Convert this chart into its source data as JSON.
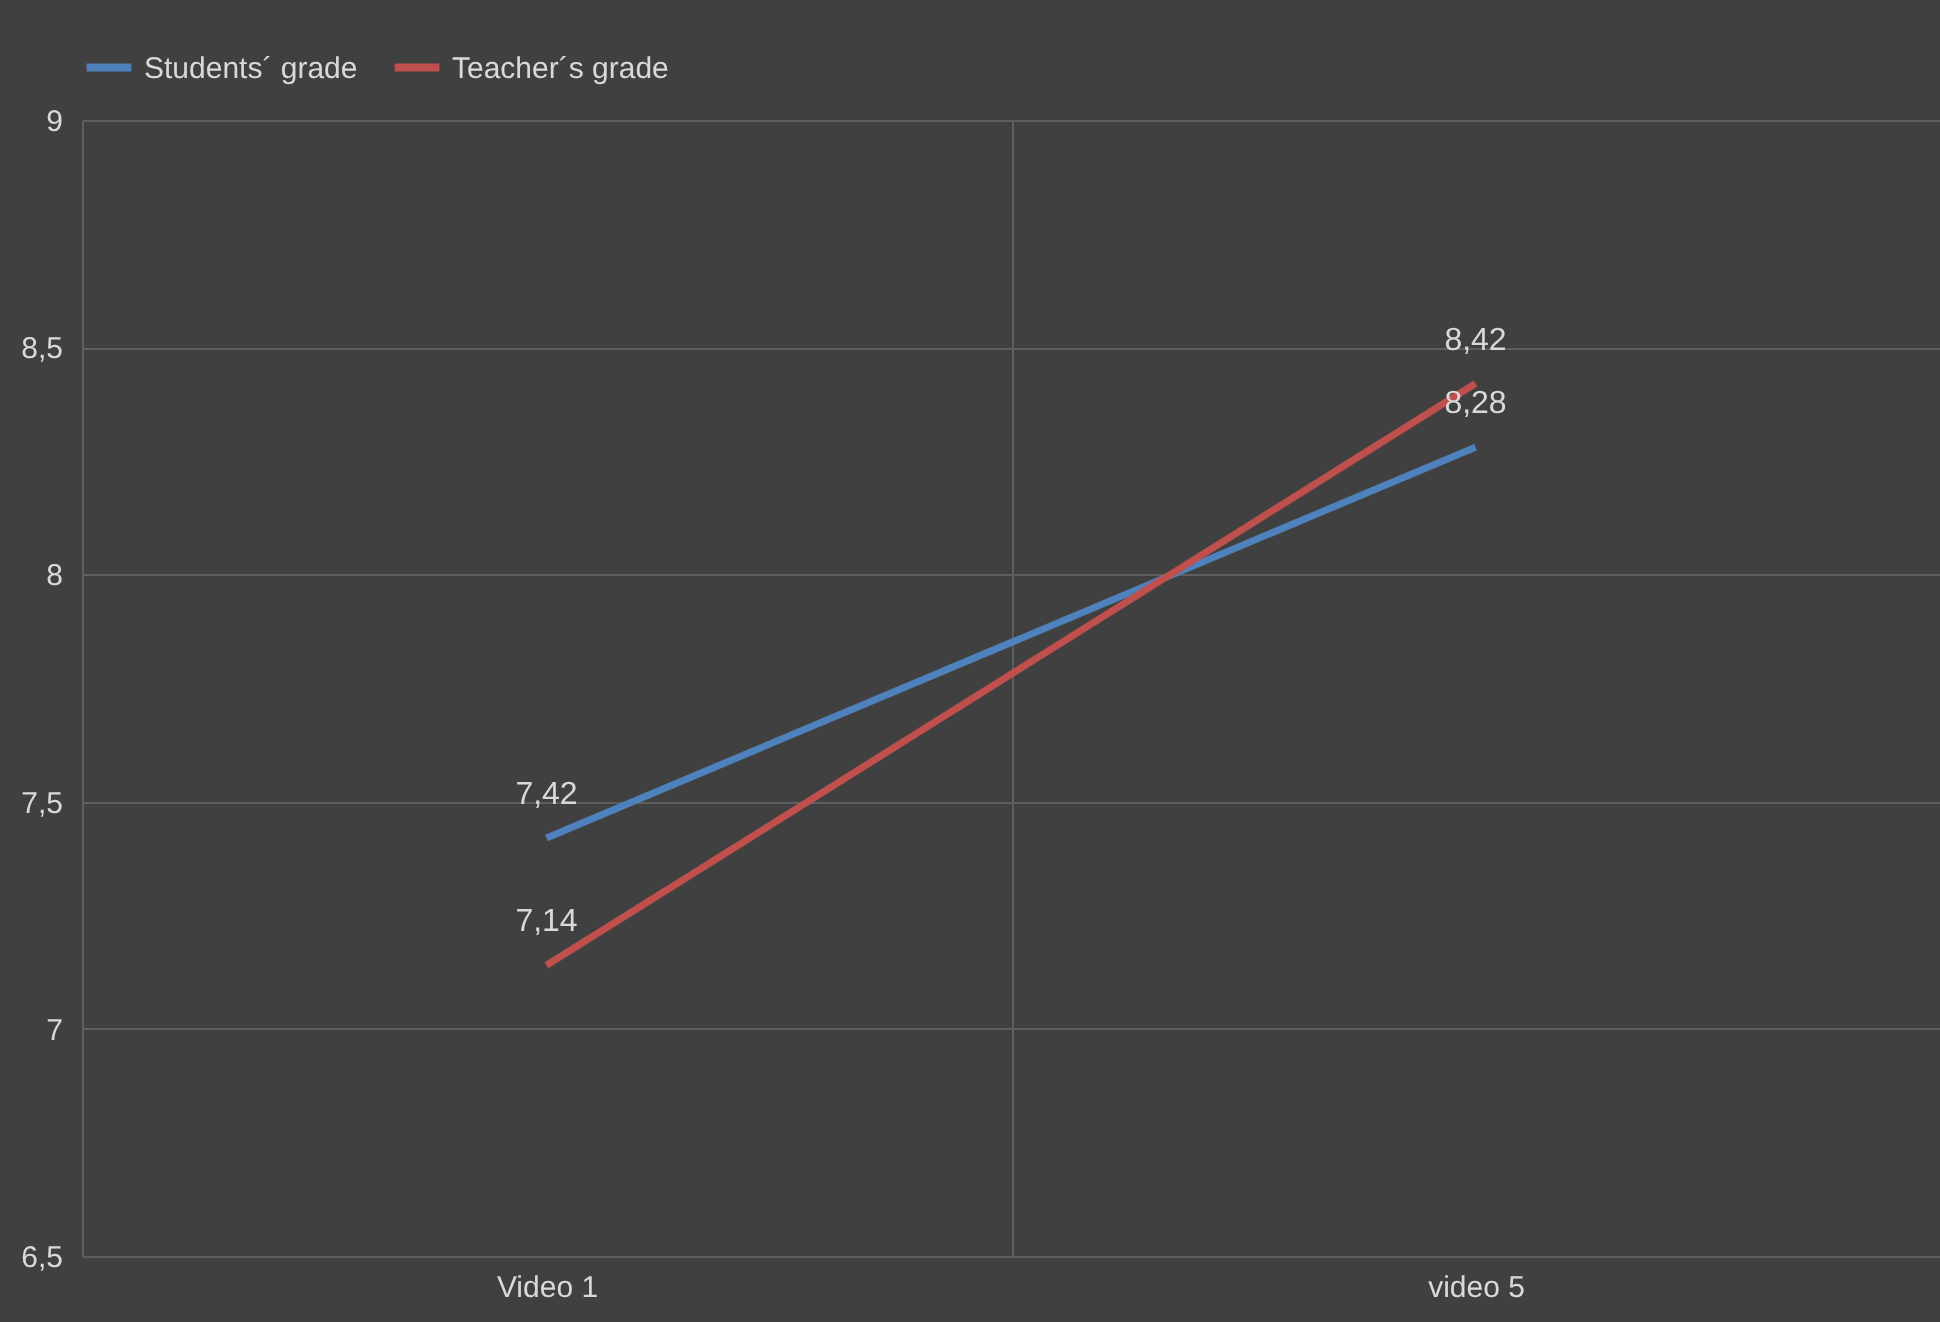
{
  "chart_data": {
    "type": "line",
    "categories": [
      "Video 1",
      "video 5"
    ],
    "series": [
      {
        "name": "Students´ grade",
        "color": "#4f81bd",
        "values": [
          7.42,
          8.28
        ],
        "value_labels": [
          "7,42",
          "8,28"
        ]
      },
      {
        "name": "Teacher´s grade",
        "color": "#c0504d",
        "values": [
          7.14,
          8.42
        ],
        "value_labels": [
          "7,14",
          "8,42"
        ]
      }
    ],
    "ylim": [
      6.5,
      9
    ],
    "yticks": [
      {
        "value": 6.5,
        "label": "6,5"
      },
      7,
      {
        "value": 7.5,
        "label": "7,5"
      },
      8,
      {
        "value": 8.5,
        "label": "8,5"
      },
      9
    ],
    "grid": true,
    "legend": "top",
    "marker": "none",
    "line_style": "solid"
  }
}
